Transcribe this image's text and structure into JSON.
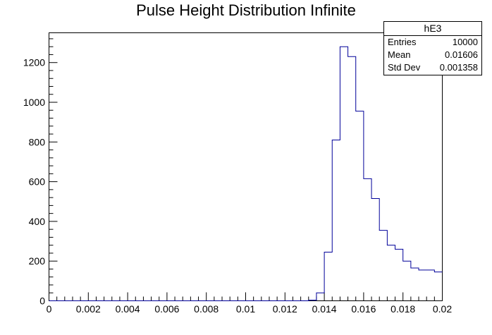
{
  "chart_data": {
    "type": "histogram",
    "title": "Pulse Height Distribution Infinite",
    "xlabel": "",
    "ylabel": "",
    "xlim": [
      0,
      0.02
    ],
    "ylim": [
      0,
      1350
    ],
    "bin_width": 0.0004,
    "x_ticks": [
      "0",
      "0.002",
      "0.004",
      "0.006",
      "0.008",
      "0.01",
      "0.012",
      "0.014",
      "0.016",
      "0.018",
      "0.02"
    ],
    "y_ticks": [
      "0",
      "200",
      "400",
      "600",
      "800",
      "1000",
      "1200"
    ],
    "bins": [
      {
        "x": 0.0132,
        "y": 3
      },
      {
        "x": 0.0136,
        "y": 40
      },
      {
        "x": 0.014,
        "y": 245
      },
      {
        "x": 0.0144,
        "y": 810
      },
      {
        "x": 0.0148,
        "y": 1280
      },
      {
        "x": 0.0152,
        "y": 1230
      },
      {
        "x": 0.0156,
        "y": 955
      },
      {
        "x": 0.016,
        "y": 615
      },
      {
        "x": 0.0164,
        "y": 515
      },
      {
        "x": 0.0168,
        "y": 355
      },
      {
        "x": 0.0172,
        "y": 280
      },
      {
        "x": 0.0176,
        "y": 260
      },
      {
        "x": 0.018,
        "y": 200
      },
      {
        "x": 0.0184,
        "y": 165
      },
      {
        "x": 0.0188,
        "y": 155
      },
      {
        "x": 0.0192,
        "y": 155
      },
      {
        "x": 0.0196,
        "y": 145
      }
    ],
    "line_color": "#000099",
    "grid": false,
    "legend": "none"
  },
  "stats_box": {
    "name": "hE3",
    "entries_label": "Entries",
    "entries_value": "10000",
    "mean_label": "Mean",
    "mean_value": "0.01606",
    "stddev_label": "Std Dev",
    "stddev_value": "0.001358"
  }
}
